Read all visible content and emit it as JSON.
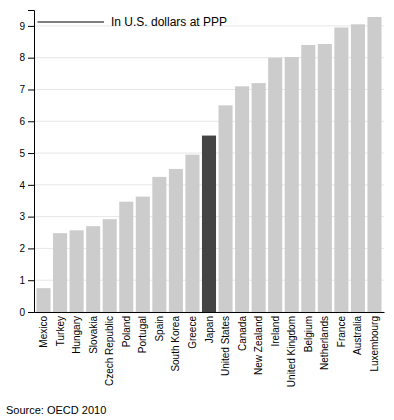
{
  "chart_data": {
    "type": "bar",
    "annotation": "In U.S. dollars at PPP",
    "source": "Source: OECD 2010",
    "categories": [
      "Mexico",
      "Turkey",
      "Hungary",
      "Slovakia",
      "Czech Republic",
      "Poland",
      "Portugal",
      "Spain",
      "South Korea",
      "Greece",
      "Japan",
      "United States",
      "Canada",
      "New Zealand",
      "Ireland",
      "United Kingdom",
      "Belgium",
      "Netherlands",
      "France",
      "Australia",
      "Luxembourg"
    ],
    "values": [
      0.75,
      2.48,
      2.57,
      2.7,
      2.92,
      3.47,
      3.63,
      4.25,
      4.5,
      4.95,
      5.55,
      6.5,
      7.1,
      7.2,
      8.0,
      8.02,
      8.4,
      8.43,
      8.95,
      9.05,
      9.28
    ],
    "colors": [
      "#cccccc",
      "#cccccc",
      "#cccccc",
      "#cccccc",
      "#cccccc",
      "#cccccc",
      "#cccccc",
      "#cccccc",
      "#cccccc",
      "#cccccc",
      "#444444",
      "#cccccc",
      "#cccccc",
      "#cccccc",
      "#cccccc",
      "#cccccc",
      "#cccccc",
      "#cccccc",
      "#cccccc",
      "#cccccc",
      "#cccccc"
    ],
    "ylim": [
      0,
      9.5
    ],
    "yticks": [
      0,
      1,
      2,
      3,
      4,
      5,
      6,
      7,
      8,
      9
    ],
    "grid": true
  }
}
